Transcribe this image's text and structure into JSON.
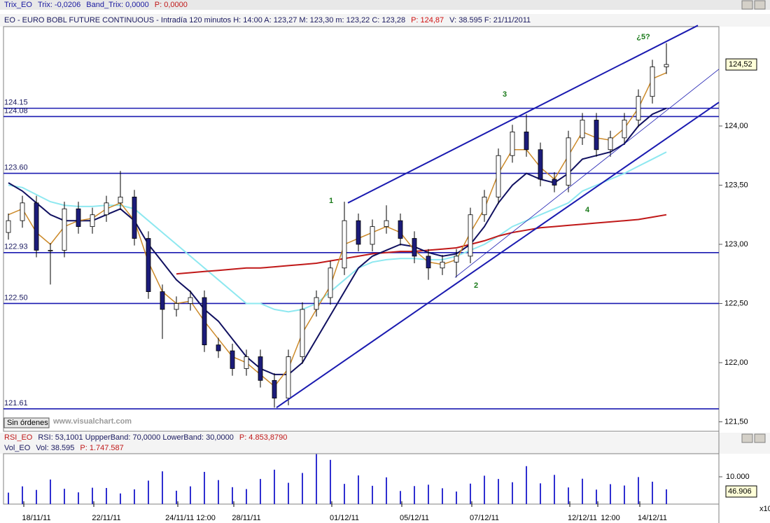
{
  "title_bar": [
    "Trix_EO",
    "Trix: -0,0206",
    "Band_Trix: 0,0000",
    "P: 0,0000"
  ],
  "info_bar": [
    "EO - EURO BOBL FUTURE CONTINUOUS - Intradía 120 minutos  H: 14:00  A: 123,27  M: 123,30  m: 123,22  C: 123,28",
    "P: 124,87",
    "V: 38.595  F: 21/11/2011"
  ],
  "rsi_bar": [
    "RSI_EO",
    "RSI: 53,1001  UppperBand: 70,0000  LowerBand: 30,0000",
    "P: 4.853,8790"
  ],
  "vol_bar": [
    "Vol_EO",
    "Vol: 38.595",
    "P: 1.747.587"
  ],
  "button": "Sin órdenes",
  "watermark": "www.visualchart.com",
  "chart_data": [
    {
      "type": "candlestick",
      "categories": [
        null,
        null,
        "18/11/11",
        null,
        null,
        null,
        null,
        "22/11/11",
        null,
        null,
        null,
        null,
        null,
        "24/11/11 12:00",
        null,
        null,
        null,
        "28/11/11",
        null,
        null,
        null,
        null,
        null,
        null,
        "01/12/11",
        null,
        null,
        null,
        null,
        "05/12/11",
        null,
        null,
        null,
        null,
        "07/12/11",
        null,
        null,
        null,
        null,
        null,
        null,
        "12/12/11",
        null,
        "12:00",
        null,
        null,
        "14/12/11",
        null
      ],
      "open": [
        123.1,
        123.2,
        123.35,
        122.95,
        122.95,
        123.3,
        123.15,
        123.25,
        123.35,
        123.4,
        123.05,
        122.6,
        122.45,
        122.5,
        122.55,
        122.15,
        122.1,
        121.95,
        122.05,
        121.85,
        121.7,
        122.05,
        122.45,
        122.55,
        122.8,
        123.2,
        123.0,
        123.15,
        123.2,
        123.05,
        122.9,
        122.8,
        122.85,
        122.9,
        123.25,
        123.4,
        123.75,
        123.95,
        123.8,
        123.55,
        123.5,
        123.9,
        124.05,
        123.8,
        123.9,
        124.05,
        124.25,
        124.5
      ],
      "high": [
        123.26,
        123.41,
        123.41,
        123.01,
        123.36,
        123.36,
        123.31,
        123.41,
        123.62,
        123.46,
        123.11,
        122.66,
        122.56,
        122.61,
        122.61,
        122.21,
        122.16,
        122.11,
        122.11,
        121.91,
        122.11,
        122.51,
        122.61,
        122.86,
        123.36,
        123.26,
        123.21,
        123.33,
        123.26,
        123.11,
        122.96,
        122.91,
        122.96,
        123.31,
        123.46,
        123.81,
        124.01,
        124.1,
        123.86,
        123.61,
        123.96,
        124.11,
        124.11,
        123.96,
        124.11,
        124.31,
        124.56,
        124.7
      ],
      "low": [
        123.04,
        123.14,
        122.89,
        122.66,
        122.89,
        123.09,
        123.09,
        123.19,
        123.29,
        122.99,
        122.54,
        122.2,
        122.39,
        122.44,
        122.09,
        122.04,
        121.89,
        121.89,
        121.79,
        121.62,
        121.64,
        121.99,
        122.39,
        122.49,
        122.74,
        122.94,
        122.94,
        123.09,
        122.99,
        122.84,
        122.7,
        122.74,
        122.72,
        122.84,
        123.19,
        123.34,
        123.69,
        123.74,
        123.49,
        123.44,
        123.44,
        123.84,
        123.74,
        123.74,
        123.84,
        123.99,
        124.19,
        124.44
      ],
      "close": [
        123.2,
        123.35,
        122.95,
        122.95,
        123.3,
        123.15,
        123.25,
        123.35,
        123.4,
        123.05,
        122.6,
        122.45,
        122.5,
        122.55,
        122.15,
        122.1,
        121.95,
        122.05,
        121.85,
        121.7,
        122.05,
        122.45,
        122.55,
        122.8,
        123.2,
        123.0,
        123.15,
        123.2,
        123.05,
        122.9,
        122.8,
        122.85,
        122.9,
        123.25,
        123.4,
        123.75,
        123.95,
        123.8,
        123.55,
        123.5,
        123.9,
        124.05,
        123.8,
        123.9,
        124.05,
        124.25,
        124.5,
        124.52
      ],
      "up_color": "#ffffff",
      "down_color": "#1c1c7a",
      "series": [
        {
          "color": "#cc8a2a",
          "values": [
            123.25,
            123.3,
            123.1,
            123.0,
            123.15,
            123.2,
            123.22,
            123.3,
            123.35,
            123.2,
            122.85,
            122.6,
            122.5,
            122.52,
            122.35,
            122.2,
            122.05,
            122.0,
            121.9,
            121.8,
            121.95,
            122.25,
            122.45,
            122.65,
            123.0,
            123.05,
            123.1,
            123.15,
            123.1,
            122.95,
            122.85,
            122.83,
            122.87,
            123.1,
            123.3,
            123.6,
            123.8,
            123.8,
            123.65,
            123.55,
            123.75,
            123.95,
            123.9,
            123.88,
            123.98,
            124.15,
            124.4,
            124.45
          ]
        },
        {
          "color": "#101060",
          "values": [
            123.52,
            123.45,
            123.35,
            123.25,
            123.2,
            123.2,
            123.2,
            123.25,
            123.3,
            123.2,
            123.0,
            122.85,
            122.7,
            122.6,
            122.45,
            122.35,
            122.2,
            122.05,
            121.95,
            121.9,
            121.9,
            122.0,
            122.2,
            122.4,
            122.6,
            122.8,
            122.9,
            122.95,
            123.0,
            122.98,
            122.93,
            122.9,
            122.92,
            123.0,
            123.15,
            123.35,
            123.5,
            123.6,
            123.55,
            123.52,
            123.6,
            123.72,
            123.75,
            123.78,
            123.85,
            124.0,
            124.1,
            124.15
          ]
        },
        {
          "color": "#8ee8f0",
          "values": [
            123.5,
            123.48,
            123.42,
            123.36,
            123.33,
            123.32,
            123.32,
            123.33,
            123.33,
            123.3,
            123.2,
            123.1,
            123.0,
            122.9,
            122.8,
            122.7,
            122.6,
            122.5,
            122.5,
            122.45,
            122.43,
            122.45,
            122.5,
            122.6,
            122.7,
            122.8,
            122.85,
            122.87,
            122.88,
            122.88,
            122.87,
            122.87,
            122.9,
            122.95,
            123.0,
            123.07,
            123.15,
            123.2,
            123.25,
            123.3,
            123.35,
            123.45,
            123.5,
            123.55,
            123.6,
            123.66,
            123.72,
            123.78
          ]
        },
        {
          "color": "#c01818",
          "values": [
            null,
            null,
            null,
            null,
            null,
            null,
            null,
            null,
            null,
            null,
            null,
            null,
            122.75,
            122.76,
            122.77,
            122.78,
            122.79,
            122.8,
            122.8,
            122.81,
            122.82,
            122.83,
            122.84,
            122.86,
            122.88,
            122.9,
            122.92,
            122.93,
            122.94,
            122.94,
            122.95,
            122.96,
            122.97,
            123.0,
            123.03,
            123.07,
            123.1,
            123.12,
            123.14,
            123.15,
            123.16,
            123.17,
            123.18,
            123.19,
            123.2,
            123.21,
            123.23,
            123.25
          ]
        }
      ],
      "levels": [
        124.15,
        124.08,
        {
          "value": 123.6,
          "label": "123.60"
        },
        122.93,
        {
          "value": 122.5,
          "label": "122.50"
        },
        121.61
      ],
      "level_color": "#1a1ab0",
      "trendlines": [
        {
          "x": [
            24.25,
            49.25
          ],
          "y": [
            123.35,
            124.85
          ],
          "width": 2
        },
        {
          "x": [
            19.15,
            50.75
          ],
          "y": [
            121.62,
            124.2
          ],
          "width": 2
        },
        {
          "x": [
            31.9,
            50.75
          ],
          "y": [
            122.72,
            124.48
          ],
          "width": 0.8
        }
      ],
      "annotations": [
        "1",
        "2",
        "3",
        "4",
        "¿5?"
      ],
      "last_price": {
        "value": 124.52,
        "label": "124,52"
      },
      "xlim": [
        -0.35,
        50.75
      ],
      "ylim": [
        121.42,
        124.84
      ],
      "yticks": [
        {
          "value": 124,
          "label": "124,00"
        },
        {
          "value": 123.5,
          "label": "123,50"
        },
        {
          "value": 123,
          "label": "123,00"
        },
        {
          "value": 122.5,
          "label": "122,50"
        },
        {
          "value": 122,
          "label": "122,00"
        },
        {
          "value": 121.5,
          "label": "121,50"
        }
      ]
    },
    {
      "type": "bar",
      "color": "#2f2fd0",
      "values": [
        4200,
        6500,
        5200,
        9000,
        5600,
        4300,
        6000,
        5900,
        3900,
        5400,
        8600,
        12000,
        4900,
        6500,
        11800,
        8800,
        6200,
        5500,
        9200,
        12600,
        7800,
        11400,
        18300,
        16200,
        7400,
        10500,
        6700,
        9800,
        4800,
        6600,
        7100,
        5800,
        4600,
        7500,
        10400,
        9200,
        8000,
        13900,
        7600,
        10700,
        6100,
        9300,
        5300,
        7300,
        6800,
        9900,
        8200,
        5400
      ],
      "ylim": [
        0,
        18460
      ],
      "yticks": [
        {
          "value": 10000,
          "label": "10.000"
        }
      ],
      "last_label": "46.906",
      "corner_label": "x10"
    }
  ]
}
